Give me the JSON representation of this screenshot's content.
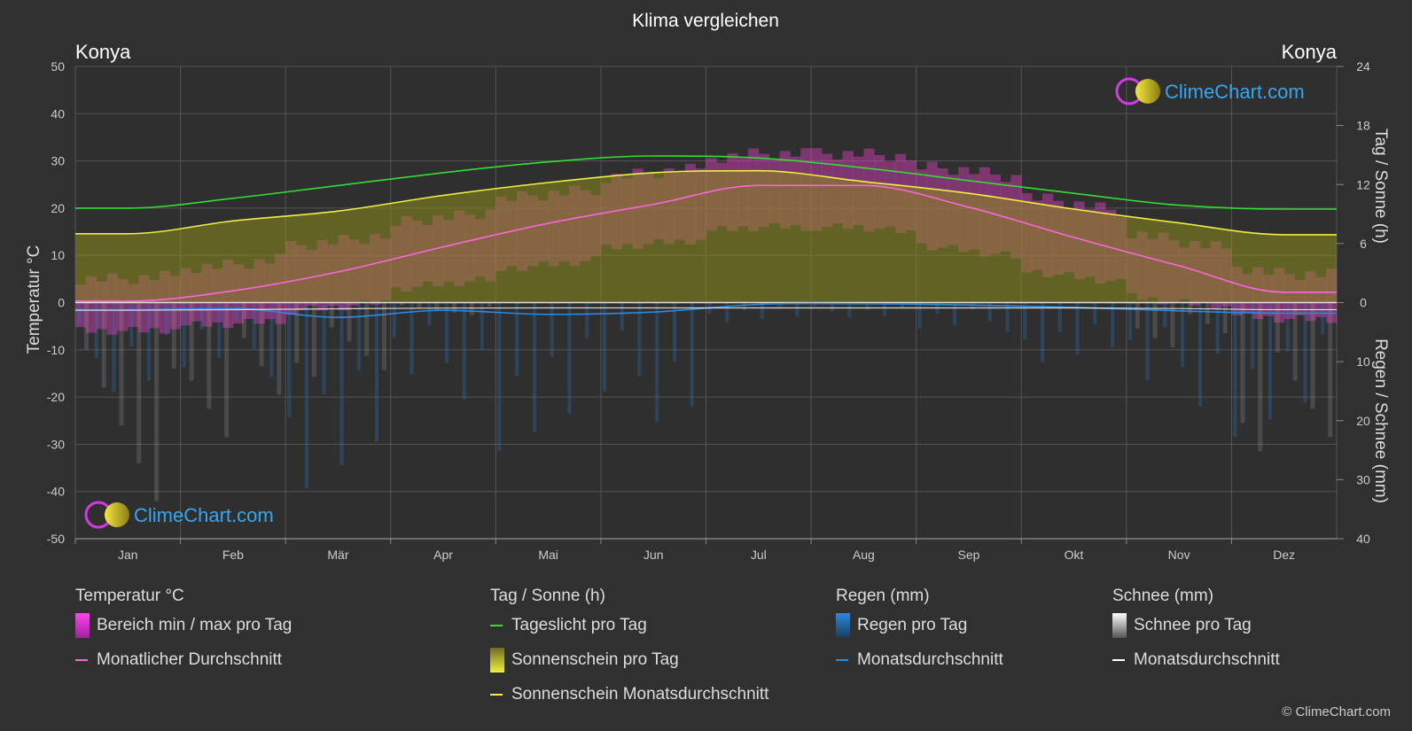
{
  "title": "Klima vergleichen",
  "location_left": "Konya",
  "location_right": "Konya",
  "watermark": "ClimeChart.com",
  "copyright": "© ClimeChart.com",
  "colors": {
    "background": "#303030",
    "daylight": "#33dd33",
    "sunshine_avg": "#eeee44",
    "sunshine_fill": "#8c8c1e",
    "temp_avg": "#ff66dd",
    "temp_range": "#e040c0",
    "rain_avg": "#2a8be0",
    "rain_bar": "#2a6fb0",
    "snow_avg": "#ffffff",
    "snow_bar": "#8a8a8a",
    "watermark": "#35a7f0"
  },
  "chart_data": {
    "type": "area",
    "title": "Klima vergleichen",
    "months": [
      "Jan",
      "Feb",
      "Mär",
      "Apr",
      "Mai",
      "Jun",
      "Jul",
      "Aug",
      "Sep",
      "Okt",
      "Nov",
      "Dez"
    ],
    "axes": {
      "left": {
        "label": "Temperatur °C",
        "min": -50,
        "max": 50,
        "ticks": [
          50,
          40,
          30,
          20,
          10,
          0,
          -10,
          -20,
          -30,
          -40,
          -50
        ]
      },
      "right_top": {
        "label": "Tag / Sonne (h)",
        "min": 0,
        "max": 24,
        "ticks": [
          24,
          18,
          12,
          6,
          0
        ]
      },
      "right_bottom": {
        "label": "Regen / Schnee (mm)",
        "min": 0,
        "max": 40,
        "ticks": [
          10,
          20,
          30,
          40
        ]
      }
    },
    "grid": true,
    "series": [
      {
        "name": "Tageslicht pro Tag",
        "unit": "h",
        "values": [
          9.6,
          10.6,
          11.9,
          13.2,
          14.3,
          14.9,
          14.7,
          13.7,
          12.4,
          11.1,
          9.9,
          9.5
        ]
      },
      {
        "name": "Sonnenschein Monatsdurchschnitt",
        "unit": "h",
        "values": [
          7.0,
          8.3,
          9.3,
          10.9,
          12.2,
          13.2,
          13.4,
          12.3,
          11.1,
          9.5,
          8.1,
          6.9
        ]
      },
      {
        "name": "Monatlicher Durchschnitt",
        "unit": "°C",
        "values": [
          0.3,
          2.5,
          6.5,
          11.8,
          16.8,
          20.8,
          24.8,
          24.8,
          20.2,
          13.8,
          7.8,
          2.2
        ]
      },
      {
        "name": "Bereich min / max pro Tag",
        "unit": "°C",
        "min": [
          -6,
          -4.5,
          -1,
          4,
          8,
          12.5,
          16,
          16,
          11,
          5.5,
          0,
          -3.5
        ],
        "max": [
          5,
          8,
          13,
          18,
          23,
          27.5,
          31.5,
          31.5,
          28,
          21,
          13,
          6
        ]
      },
      {
        "name": "Regen Monatsdurchschnitt",
        "unit": "mm",
        "values": [
          1.2,
          1.0,
          2.5,
          1.3,
          2.0,
          1.6,
          0.3,
          0.2,
          0.4,
          0.8,
          1.4,
          1.8
        ]
      },
      {
        "name": "Schnee Monatsdurchschnitt",
        "unit": "mm",
        "values": [
          0.8,
          0.6,
          0.3,
          0.05,
          0,
          0,
          0,
          0,
          0,
          0,
          0.2,
          0.6
        ]
      }
    ]
  },
  "legend": {
    "temperature": {
      "title": "Temperatur °C",
      "range": "Bereich min / max pro Tag",
      "avg": "Monatlicher Durchschnitt"
    },
    "sun": {
      "title": "Tag / Sonne (h)",
      "daylight": "Tageslicht pro Tag",
      "sunshine": "Sonnenschein pro Tag",
      "sunshine_avg": "Sonnenschein Monatsdurchschnitt"
    },
    "rain": {
      "title": "Regen (mm)",
      "per_day": "Regen pro Tag",
      "avg": "Monatsdurchschnitt"
    },
    "snow": {
      "title": "Schnee (mm)",
      "per_day": "Schnee pro Tag",
      "avg": "Monatsdurchschnitt"
    }
  }
}
